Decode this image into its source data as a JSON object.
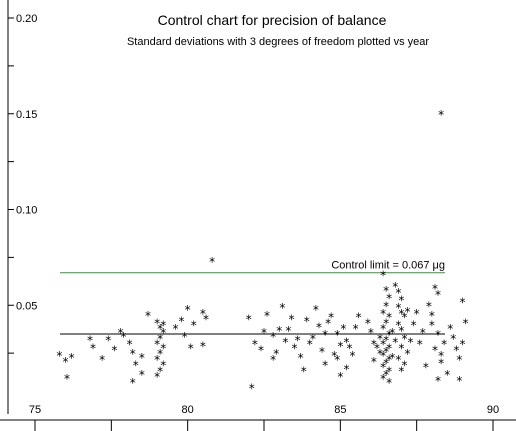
{
  "chart_data": {
    "type": "scatter",
    "title": "Control chart for precision of balance",
    "subtitle": "Standard deviations with 3 degrees of freedom  plotted vs year",
    "xlabel": "",
    "ylabel": "",
    "xlim": [
      75,
      90
    ],
    "ylim": [
      0.0,
      0.2
    ],
    "x_ticks": [
      75,
      80,
      85,
      90
    ],
    "x_tick_labels": [
      "75",
      "80",
      "85",
      "90"
    ],
    "y_ticks": [
      0.05,
      0.1,
      0.15,
      0.2
    ],
    "y_tick_labels": [
      "0.05",
      "0.10",
      "0.15",
      "0.20"
    ],
    "marker": "*",
    "reference_lines": [
      {
        "y": 0.067,
        "label": "Control limit = 0.067 μg",
        "color": "#2e9b2e"
      },
      {
        "y": 0.035,
        "label": "",
        "color": "#000000"
      }
    ],
    "grid": false,
    "points": [
      [
        75.8,
        0.024
      ],
      [
        76.0,
        0.021
      ],
      [
        76.05,
        0.012
      ],
      [
        76.2,
        0.023
      ],
      [
        76.8,
        0.032
      ],
      [
        76.9,
        0.028
      ],
      [
        77.2,
        0.022
      ],
      [
        77.4,
        0.032
      ],
      [
        77.6,
        0.027
      ],
      [
        77.8,
        0.036
      ],
      [
        77.9,
        0.034
      ],
      [
        78.1,
        0.03
      ],
      [
        78.2,
        0.025
      ],
      [
        78.3,
        0.019
      ],
      [
        78.2,
        0.01
      ],
      [
        78.5,
        0.023
      ],
      [
        78.5,
        0.014
      ],
      [
        78.7,
        0.045
      ],
      [
        79.0,
        0.041
      ],
      [
        79.1,
        0.038
      ],
      [
        79.2,
        0.036
      ],
      [
        79.1,
        0.033
      ],
      [
        79.0,
        0.03
      ],
      [
        79.2,
        0.028
      ],
      [
        79.1,
        0.025
      ],
      [
        79.0,
        0.022
      ],
      [
        79.2,
        0.019
      ],
      [
        79.1,
        0.016
      ],
      [
        79.0,
        0.013
      ],
      [
        79.2,
        0.04
      ],
      [
        79.6,
        0.038
      ],
      [
        79.8,
        0.042
      ],
      [
        79.9,
        0.034
      ],
      [
        80.0,
        0.048
      ],
      [
        80.2,
        0.04
      ],
      [
        80.1,
        0.028
      ],
      [
        80.5,
        0.046
      ],
      [
        80.6,
        0.043
      ],
      [
        80.5,
        0.029
      ],
      [
        80.8,
        0.073
      ],
      [
        82.0,
        0.043
      ],
      [
        82.2,
        0.03
      ],
      [
        82.4,
        0.027
      ],
      [
        82.6,
        0.045
      ],
      [
        82.5,
        0.036
      ],
      [
        82.1,
        0.007
      ],
      [
        82.8,
        0.034
      ],
      [
        82.9,
        0.025
      ],
      [
        82.8,
        0.022
      ],
      [
        83.1,
        0.049
      ],
      [
        83.0,
        0.037
      ],
      [
        83.2,
        0.031
      ],
      [
        83.3,
        0.037
      ],
      [
        83.4,
        0.043
      ],
      [
        83.5,
        0.028
      ],
      [
        83.6,
        0.032
      ],
      [
        83.7,
        0.023
      ],
      [
        83.9,
        0.042
      ],
      [
        84.0,
        0.03
      ],
      [
        83.8,
        0.016
      ],
      [
        84.2,
        0.048
      ],
      [
        84.3,
        0.039
      ],
      [
        84.1,
        0.033
      ],
      [
        84.4,
        0.026
      ],
      [
        84.5,
        0.035
      ],
      [
        84.6,
        0.041
      ],
      [
        84.7,
        0.044
      ],
      [
        84.5,
        0.019
      ],
      [
        84.8,
        0.024
      ],
      [
        84.9,
        0.035
      ],
      [
        85.0,
        0.029
      ],
      [
        84.9,
        0.022
      ],
      [
        85.1,
        0.038
      ],
      [
        85.0,
        0.013
      ],
      [
        85.2,
        0.017
      ],
      [
        85.3,
        0.028
      ],
      [
        85.2,
        0.031
      ],
      [
        85.4,
        0.024
      ],
      [
        85.5,
        0.038
      ],
      [
        85.6,
        0.044
      ],
      [
        85.9,
        0.041
      ],
      [
        86.0,
        0.036
      ],
      [
        86.1,
        0.03
      ],
      [
        86.2,
        0.028
      ],
      [
        86.3,
        0.025
      ],
      [
        86.1,
        0.021
      ],
      [
        86.4,
        0.066
      ],
      [
        86.5,
        0.058
      ],
      [
        86.6,
        0.054
      ],
      [
        86.5,
        0.05
      ],
      [
        86.4,
        0.046
      ],
      [
        86.6,
        0.044
      ],
      [
        86.5,
        0.041
      ],
      [
        86.4,
        0.038
      ],
      [
        86.6,
        0.035
      ],
      [
        86.5,
        0.032
      ],
      [
        86.4,
        0.03
      ],
      [
        86.6,
        0.028
      ],
      [
        86.5,
        0.026
      ],
      [
        86.4,
        0.024
      ],
      [
        86.6,
        0.022
      ],
      [
        86.5,
        0.02
      ],
      [
        86.4,
        0.018
      ],
      [
        86.6,
        0.016
      ],
      [
        86.5,
        0.014
      ],
      [
        86.4,
        0.012
      ],
      [
        86.6,
        0.01
      ],
      [
        86.7,
        0.023
      ],
      [
        86.3,
        0.033
      ],
      [
        86.7,
        0.036
      ],
      [
        86.8,
        0.06
      ],
      [
        86.9,
        0.057
      ],
      [
        87.0,
        0.053
      ],
      [
        86.9,
        0.049
      ],
      [
        87.0,
        0.046
      ],
      [
        87.1,
        0.044
      ],
      [
        86.9,
        0.04
      ],
      [
        87.0,
        0.037
      ],
      [
        87.1,
        0.033
      ],
      [
        86.8,
        0.031
      ],
      [
        87.0,
        0.028
      ],
      [
        87.2,
        0.025
      ],
      [
        86.9,
        0.022
      ],
      [
        87.1,
        0.019
      ],
      [
        87.0,
        0.016
      ],
      [
        87.2,
        0.047
      ],
      [
        87.4,
        0.04
      ],
      [
        87.3,
        0.031
      ],
      [
        87.5,
        0.046
      ],
      [
        87.6,
        0.03
      ],
      [
        87.7,
        0.036
      ],
      [
        87.8,
        0.018
      ],
      [
        87.9,
        0.05
      ],
      [
        88.0,
        0.045
      ],
      [
        88.1,
        0.059
      ],
      [
        88.2,
        0.056
      ],
      [
        88.0,
        0.04
      ],
      [
        88.2,
        0.035
      ],
      [
        88.1,
        0.027
      ],
      [
        88.3,
        0.024
      ],
      [
        88.4,
        0.03
      ],
      [
        88.3,
        0.02
      ],
      [
        88.5,
        0.014
      ],
      [
        88.2,
        0.011
      ],
      [
        88.6,
        0.038
      ],
      [
        88.7,
        0.033
      ],
      [
        88.8,
        0.027
      ],
      [
        88.9,
        0.022
      ],
      [
        89.0,
        0.03
      ],
      [
        89.1,
        0.041
      ],
      [
        88.9,
        0.011
      ],
      [
        89.0,
        0.052
      ],
      [
        88.3,
        0.15
      ]
    ]
  }
}
